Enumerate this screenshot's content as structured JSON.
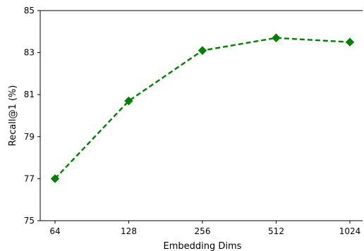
{
  "chart_data": {
    "type": "line",
    "title": "",
    "xlabel": "Embedding Dims",
    "ylabel": "Recall@1 (%)",
    "categories": [
      "64",
      "128",
      "256",
      "512",
      "1024"
    ],
    "series": [
      {
        "values": [
          77.0,
          80.7,
          83.1,
          83.7,
          83.5
        ],
        "color": "#008000",
        "line_style": "dashed",
        "marker": "diamond"
      }
    ],
    "ylim": [
      75,
      85
    ],
    "yticks": [
      "75",
      "77",
      "79",
      "81",
      "83",
      "85"
    ],
    "grid": false
  }
}
